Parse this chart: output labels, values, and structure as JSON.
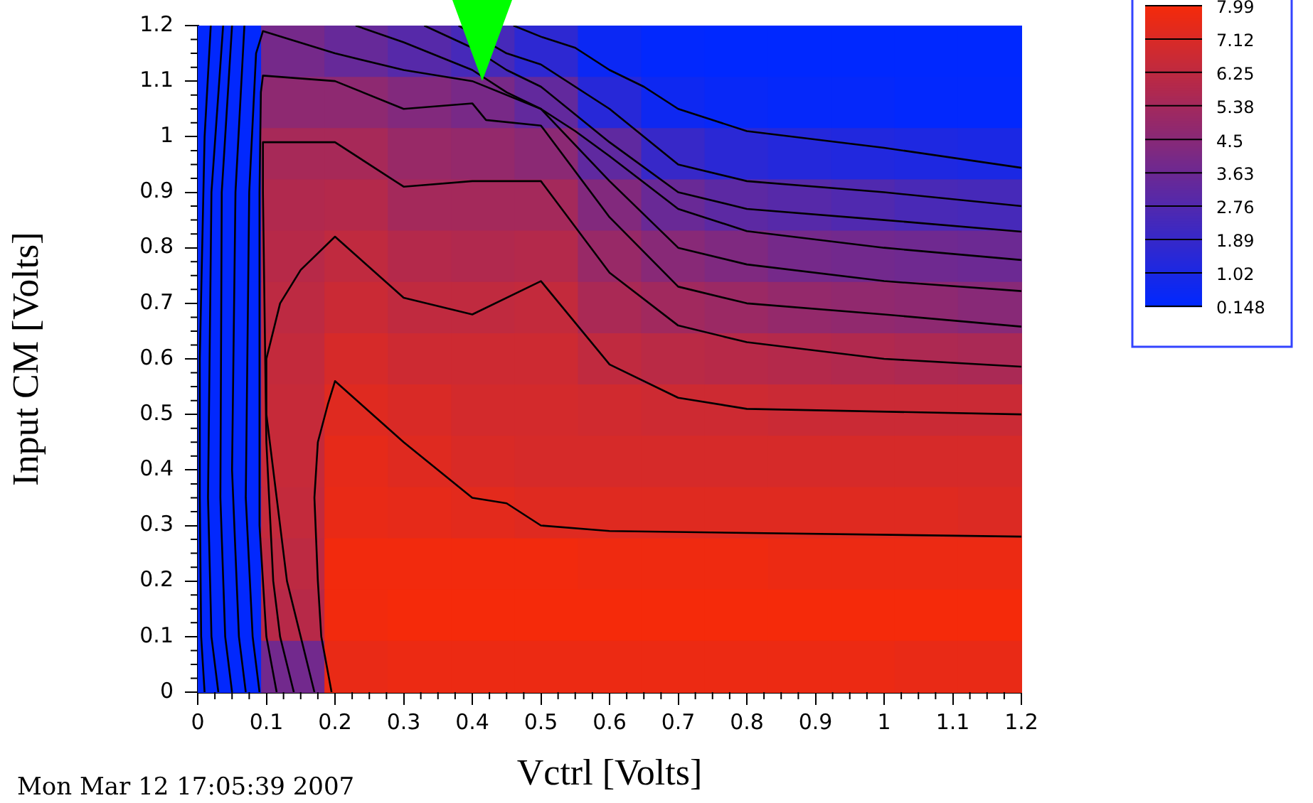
{
  "chart_data": {
    "type": "heatmap",
    "xlabel": "Vctrl [Volts]",
    "ylabel": "Input CM [Volts]",
    "xlim": [
      0,
      1.2
    ],
    "ylim": [
      0,
      1.2
    ],
    "xticks": [
      0,
      0.1,
      0.2,
      0.3,
      0.4,
      0.5,
      0.6,
      0.7,
      0.8,
      0.9,
      1,
      1.1,
      1.2
    ],
    "yticks": [
      0,
      0.1,
      0.2,
      0.3,
      0.4,
      0.5,
      0.6,
      0.7,
      0.8,
      0.9,
      1,
      1.1,
      1.2
    ],
    "cells": [
      [
        0.2,
        3.9,
        3.4,
        2.9,
        2.4,
        1.6,
        0.5,
        0.2,
        0.15,
        0.15,
        0.15,
        0.15,
        0.15
      ],
      [
        0.2,
        4.7,
        4.7,
        4.3,
        4.0,
        3.3,
        1.4,
        0.6,
        0.4,
        0.3,
        0.3,
        0.2,
        0.2
      ],
      [
        0.2,
        5.5,
        5.5,
        5.0,
        4.9,
        4.6,
        3.2,
        1.9,
        1.5,
        1.3,
        1.2,
        1.1,
        1.0
      ],
      [
        0.2,
        5.8,
        5.9,
        5.4,
        5.4,
        5.4,
        4.3,
        3.5,
        3.1,
        2.9,
        2.7,
        2.5,
        2.4
      ],
      [
        0.2,
        6.0,
        6.3,
        5.9,
        5.8,
        5.9,
        5.0,
        4.5,
        4.2,
        3.9,
        3.8,
        3.7,
        3.6
      ],
      [
        0.2,
        6.2,
        6.6,
        6.3,
        6.3,
        6.4,
        5.6,
        5.3,
        5.1,
        4.9,
        4.8,
        4.7,
        4.5
      ],
      [
        0.2,
        6.4,
        7.0,
        6.7,
        6.7,
        6.7,
        6.3,
        6.1,
        6.0,
        5.9,
        5.8,
        5.7,
        5.6
      ],
      [
        0.2,
        6.5,
        7.3,
        7.1,
        6.9,
        6.9,
        6.8,
        6.7,
        6.7,
        6.6,
        6.6,
        6.6,
        6.6
      ],
      [
        0.2,
        6.5,
        7.5,
        7.3,
        7.1,
        7.0,
        7.0,
        7.0,
        7.0,
        7.0,
        7.0,
        7.0,
        7.0
      ],
      [
        0.2,
        6.4,
        7.6,
        7.5,
        7.4,
        7.3,
        7.3,
        7.3,
        7.3,
        7.3,
        7.3,
        7.3,
        7.2
      ],
      [
        0.2,
        6.2,
        7.9,
        7.9,
        7.9,
        7.9,
        7.8,
        7.8,
        7.8,
        7.7,
        7.7,
        7.7,
        7.7
      ],
      [
        0.2,
        6.0,
        7.9,
        7.99,
        7.99,
        7.99,
        7.99,
        7.99,
        7.99,
        7.99,
        7.99,
        7.99,
        7.99
      ],
      [
        0.2,
        3.8,
        7.6,
        7.7,
        7.7,
        7.7,
        7.7,
        7.7,
        7.7,
        7.7,
        7.7,
        7.6,
        7.6
      ]
    ],
    "clim": [
      0.148,
      7.99
    ],
    "cticks": [
      0.148,
      1.02,
      1.89,
      2.76,
      3.63,
      4.5,
      5.38,
      6.25,
      7.12,
      7.99
    ],
    "colors": [
      "#0028ff",
      "#f52a0a"
    ],
    "series": [
      {
        "type": "line",
        "color": "#000000",
        "x": [
          0.01,
          0.005,
          0.003,
          0.003,
          0.01,
          0.019
        ],
        "values": [
          0,
          0.1,
          0.35,
          0.6,
          1.0,
          1.2
        ]
      },
      {
        "type": "line",
        "color": "#000000",
        "x": [
          0.03,
          0.02,
          0.015,
          0.02,
          0.037
        ],
        "values": [
          0,
          0.1,
          0.35,
          0.9,
          1.2
        ]
      },
      {
        "type": "line",
        "color": "#000000",
        "x": [
          0.05,
          0.04,
          0.033,
          0.035,
          0.05
        ],
        "values": [
          0,
          0.1,
          0.35,
          0.9,
          1.2
        ]
      },
      {
        "type": "line",
        "color": "#000000",
        "x": [
          0.07,
          0.06,
          0.05,
          0.055,
          0.068
        ],
        "values": [
          0,
          0.1,
          0.4,
          0.9,
          1.2
        ]
      },
      {
        "type": "line",
        "color": "#000000",
        "x": [
          0.46,
          0.5,
          0.55,
          0.6,
          0.65,
          0.7,
          0.8,
          1.0,
          1.2
        ],
        "values": [
          1.2,
          1.18,
          1.16,
          1.12,
          1.09,
          1.05,
          1.01,
          0.98,
          0.944
        ]
      },
      {
        "type": "line",
        "color": "#000000",
        "x": [
          0.38,
          0.45,
          0.5,
          0.6,
          0.7,
          0.8,
          1.0,
          1.2
        ],
        "values": [
          1.2,
          1.15,
          1.13,
          1.05,
          0.95,
          0.92,
          0.9,
          0.875
        ]
      },
      {
        "type": "line",
        "color": "#000000",
        "x": [
          0.33,
          0.4,
          0.45,
          0.5,
          0.6,
          0.7,
          0.8,
          1.0,
          1.2
        ],
        "values": [
          1.2,
          1.16,
          1.12,
          1.09,
          0.99,
          0.9,
          0.87,
          0.85,
          0.829
        ]
      },
      {
        "type": "line",
        "color": "#000000",
        "x": [
          0.23,
          0.3,
          0.4,
          0.45,
          0.5,
          0.55,
          0.6,
          0.7,
          0.8,
          1.0,
          1.2
        ],
        "values": [
          1.2,
          1.17,
          1.12,
          1.08,
          1.05,
          1.01,
          0.965,
          0.87,
          0.83,
          0.8,
          0.778
        ]
      },
      {
        "type": "line",
        "color": "#000000",
        "x": [
          0.09,
          0.08,
          0.07,
          0.075,
          0.085,
          0.095,
          0.2,
          0.3,
          0.4,
          0.5,
          0.6,
          0.7,
          0.8,
          1.0,
          1.2
        ],
        "values": [
          0,
          0.1,
          0.35,
          0.9,
          1.15,
          1.19,
          1.15,
          1.12,
          1.1,
          1.05,
          0.92,
          0.8,
          0.77,
          0.74,
          0.722
        ]
      },
      {
        "type": "line",
        "color": "#000000",
        "x": [
          0.115,
          0.1,
          0.09,
          0.09,
          0.092,
          0.095,
          0.2,
          0.3,
          0.4,
          0.42,
          0.5,
          0.6,
          0.7,
          0.8,
          1.0,
          1.2
        ],
        "values": [
          0,
          0.1,
          0.3,
          0.9,
          1.08,
          1.11,
          1.1,
          1.05,
          1.06,
          1.03,
          1.02,
          0.855,
          0.73,
          0.7,
          0.68,
          0.658
        ]
      },
      {
        "type": "line",
        "color": "#000000",
        "x": [
          0.14,
          0.12,
          0.11,
          0.1,
          0.095,
          0.095,
          0.2,
          0.3,
          0.4,
          0.5,
          0.6,
          0.7,
          0.8,
          1.0,
          1.2
        ],
        "values": [
          0,
          0.1,
          0.2,
          0.45,
          0.9,
          0.99,
          0.99,
          0.91,
          0.92,
          0.92,
          0.755,
          0.66,
          0.63,
          0.6,
          0.586
        ]
      },
      {
        "type": "line",
        "color": "#000000",
        "x": [
          0.17,
          0.15,
          0.13,
          0.115,
          0.1,
          0.1,
          0.12,
          0.15,
          0.2,
          0.3,
          0.4,
          0.5,
          0.6,
          0.7,
          0.8,
          1.2
        ],
        "values": [
          0,
          0.1,
          0.2,
          0.35,
          0.5,
          0.6,
          0.7,
          0.76,
          0.82,
          0.71,
          0.68,
          0.74,
          0.59,
          0.53,
          0.51,
          0.5
        ]
      },
      {
        "type": "line",
        "color": "#000000",
        "x": [
          0.195,
          0.18,
          0.175,
          0.17,
          0.175,
          0.19,
          0.2,
          0.3,
          0.4,
          0.45,
          0.5,
          0.6,
          1.2
        ],
        "values": [
          0,
          0.1,
          0.2,
          0.35,
          0.45,
          0.52,
          0.56,
          0.45,
          0.35,
          0.34,
          0.3,
          0.29,
          0.28
        ]
      }
    ],
    "annotations": [
      "Mon Mar 12 17:05:39 2007"
    ]
  }
}
